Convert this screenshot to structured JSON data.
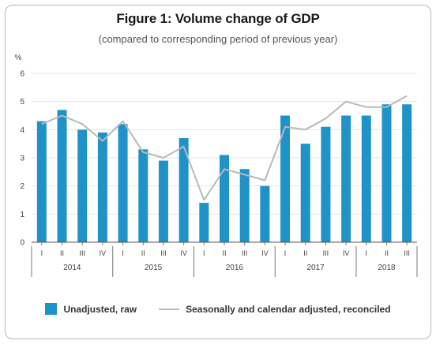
{
  "chart_data": {
    "type": "bar",
    "title": "Figure 1: Volume change of GDP",
    "subtitle": "(compared to corresponding period of previous year)",
    "y_unit": "%",
    "ylim": [
      0,
      6
    ],
    "yticks": [
      "0",
      "1",
      "2",
      "3",
      "4",
      "5",
      "6"
    ],
    "grid": true,
    "legend_position": "bottom",
    "categories": [
      "I",
      "II",
      "III",
      "IV",
      "I",
      "II",
      "III",
      "IV",
      "I",
      "II",
      "III",
      "IV",
      "I",
      "II",
      "III",
      "IV",
      "I",
      "II",
      "III"
    ],
    "years": [
      {
        "label": "2014",
        "count": 4
      },
      {
        "label": "2015",
        "count": 4
      },
      {
        "label": "2016",
        "count": 4
      },
      {
        "label": "2017",
        "count": 4
      },
      {
        "label": "2018",
        "count": 3
      }
    ],
    "series": [
      {
        "name": "Unadjusted, raw",
        "type": "bar",
        "color": "#1f93c8",
        "values": [
          4.3,
          4.7,
          4.0,
          3.9,
          4.2,
          3.3,
          2.9,
          3.7,
          1.4,
          3.1,
          2.6,
          2.0,
          4.5,
          3.5,
          4.1,
          4.5,
          4.5,
          4.9,
          4.9
        ]
      },
      {
        "name": "Seasonally and calendar adjusted, reconciled",
        "type": "line",
        "color": "#b9b9b9",
        "values": [
          4.2,
          4.5,
          4.2,
          3.6,
          4.3,
          3.2,
          3.0,
          3.4,
          1.5,
          2.6,
          2.4,
          2.2,
          4.1,
          4.0,
          4.4,
          5.0,
          4.8,
          4.8,
          5.2
        ]
      }
    ]
  }
}
